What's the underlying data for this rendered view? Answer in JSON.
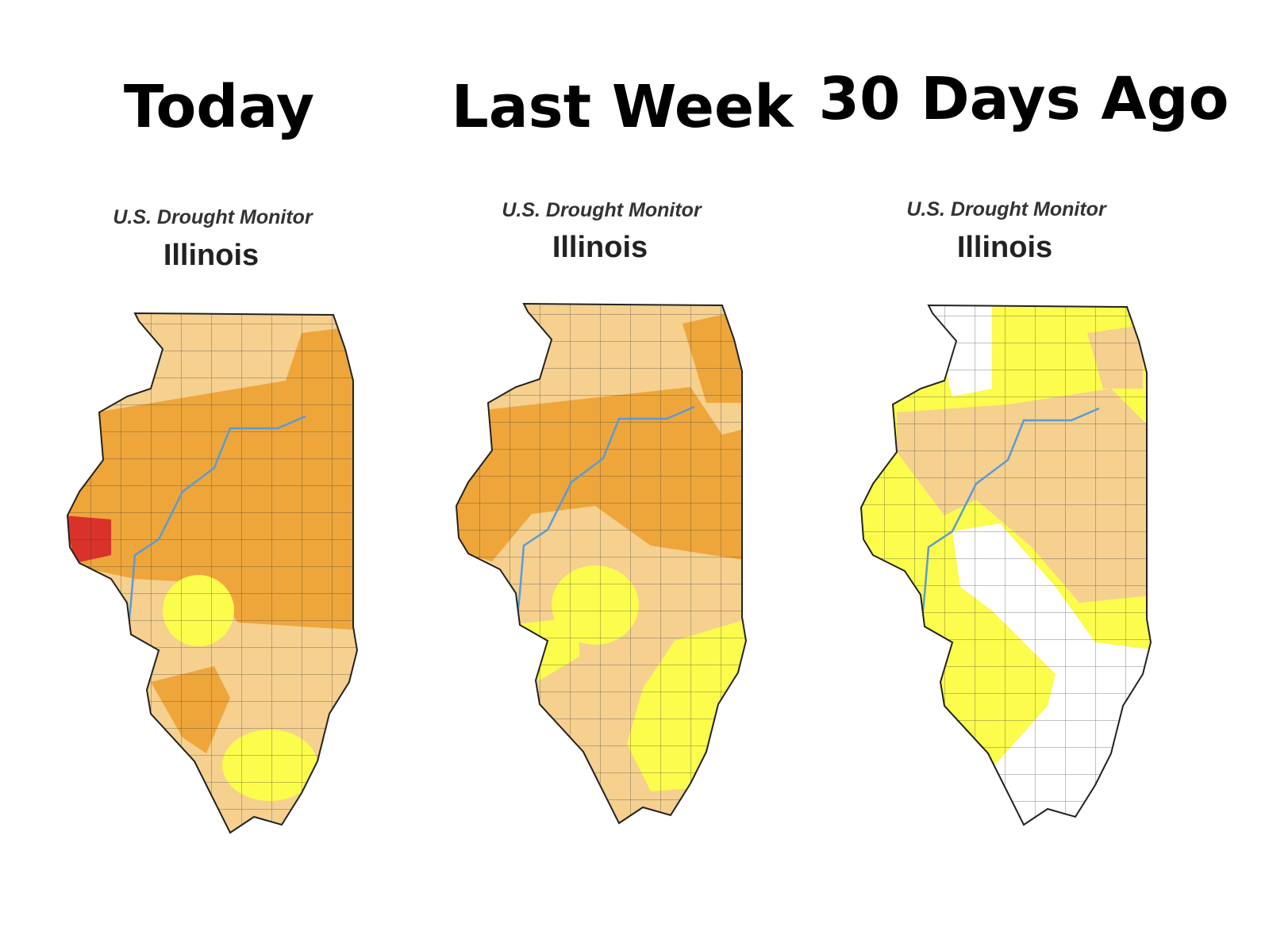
{
  "panels": [
    {
      "heading": "Today",
      "source": "U.S. Drought Monitor",
      "state": "Illinois"
    },
    {
      "heading": "Last Week",
      "source": "U.S. Drought Monitor",
      "state": "Illinois"
    },
    {
      "heading": "30 Days Ago",
      "source": "U.S. Drought Monitor",
      "state": "Illinois"
    }
  ]
}
